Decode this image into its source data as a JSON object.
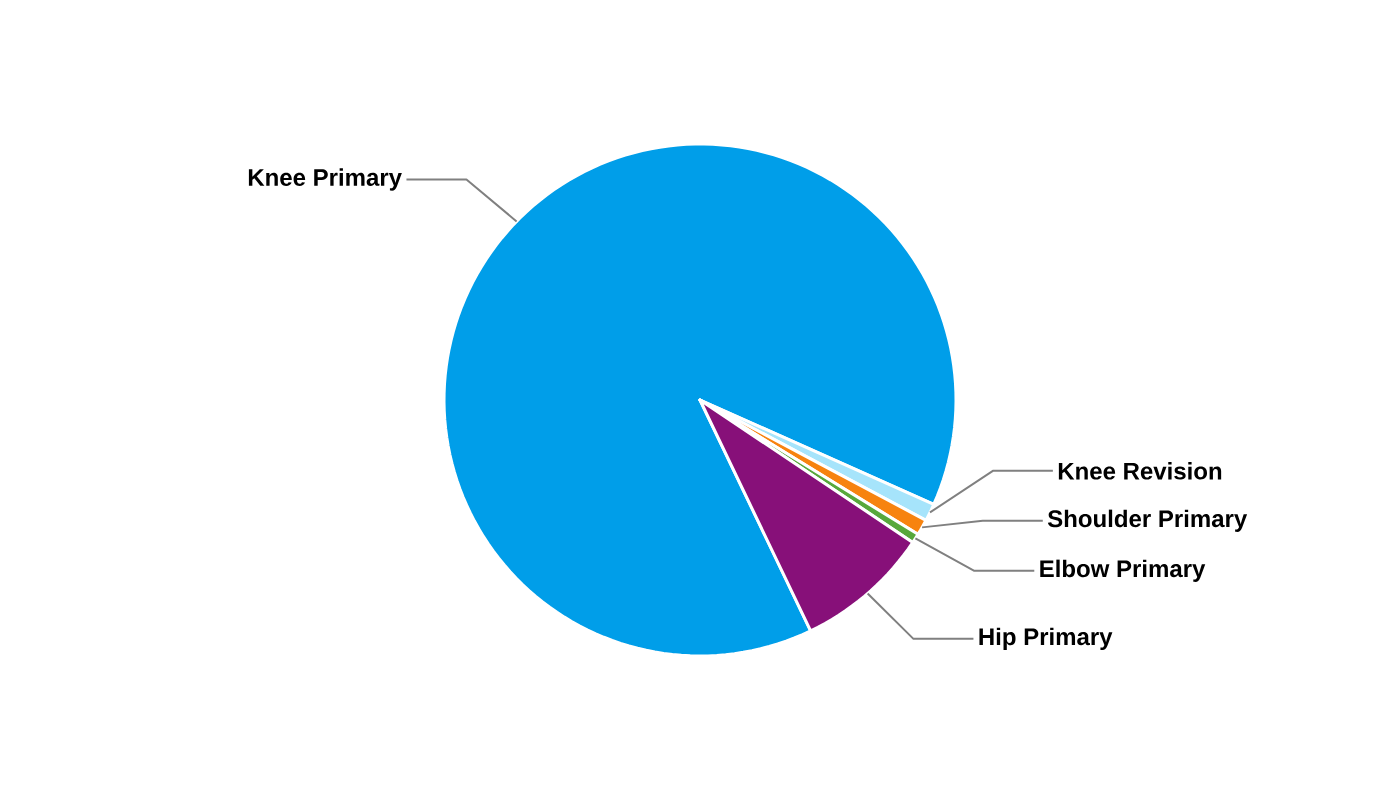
{
  "chart_data": {
    "type": "pie",
    "categories": [
      "Knee Primary",
      "Knee Revision",
      "Shoulder Primary",
      "Elbow Primary",
      "Hip Primary"
    ],
    "values": [
      88.8,
      1.1,
      1.0,
      0.6,
      8.5
    ],
    "colors": [
      "#009ee9",
      "#a6e4fb",
      "#f7830f",
      "#58a83c",
      "#871079"
    ]
  }
}
